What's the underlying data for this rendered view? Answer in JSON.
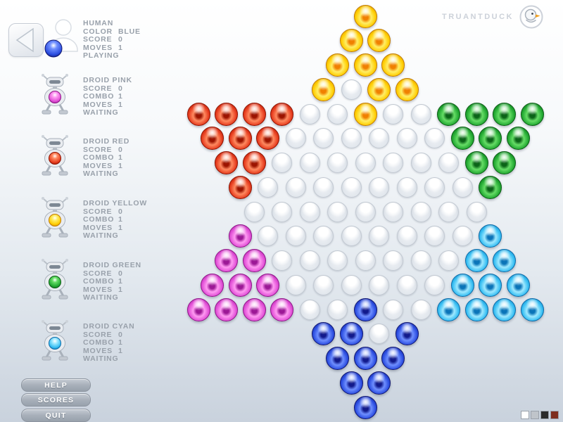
{
  "brand": {
    "name": "TRUANTDUCK"
  },
  "players": [
    {
      "name": "HUMAN",
      "icon": "human",
      "color_key": "blue",
      "stats": [
        [
          "COLOR",
          "BLUE"
        ],
        [
          "SCORE",
          "0"
        ],
        [
          "MOVES",
          "1"
        ]
      ],
      "status": "PLAYING"
    },
    {
      "name": "DROID PINK",
      "icon": "droid",
      "color_key": "pink",
      "stats": [
        [
          "SCORE",
          "0"
        ],
        [
          "COMBO",
          "1"
        ],
        [
          "MOVES",
          "1"
        ]
      ],
      "status": "WAITING"
    },
    {
      "name": "DROID RED",
      "icon": "droid",
      "color_key": "red",
      "stats": [
        [
          "SCORE",
          "0"
        ],
        [
          "COMBO",
          "1"
        ],
        [
          "MOVES",
          "1"
        ]
      ],
      "status": "WAITING"
    },
    {
      "name": "DROID YELLOW",
      "icon": "droid",
      "color_key": "yellow",
      "stats": [
        [
          "SCORE",
          "0"
        ],
        [
          "COMBO",
          "1"
        ],
        [
          "MOVES",
          "1"
        ]
      ],
      "status": "WAITING"
    },
    {
      "name": "DROID GREEN",
      "icon": "droid",
      "color_key": "green",
      "stats": [
        [
          "SCORE",
          "0"
        ],
        [
          "COMBO",
          "1"
        ],
        [
          "MOVES",
          "1"
        ]
      ],
      "status": "WAITING"
    },
    {
      "name": "DROID CYAN",
      "icon": "droid",
      "color_key": "cyan",
      "stats": [
        [
          "SCORE",
          "0"
        ],
        [
          "COMBO",
          "1"
        ],
        [
          "MOVES",
          "1"
        ]
      ],
      "status": "WAITING"
    }
  ],
  "menu_buttons": [
    {
      "label": "HELP"
    },
    {
      "label": "SCORES"
    },
    {
      "label": "QUIT"
    }
  ],
  "board": {
    "rows": [
      "Y",
      "YY",
      "YYY",
      "Y.YY",
      "RRRR..Y..GGGG",
      "RRR......GGG",
      "RR.......GG",
      "R........G",
      ".........",
      "P........C",
      "PP.......CC",
      "PPP......CCC",
      "PPPP..B..CCCC",
      "BB.B",
      "BBB",
      "BB",
      "B"
    ],
    "legend": {
      "Y": "yellow",
      "R": "red",
      "G": "green",
      "P": "pink",
      "C": "cyan",
      "B": "blue",
      ".": "empty"
    }
  },
  "palette": {
    "marbles": {
      "yellow": {
        "core": "#f08000",
        "main": "#ffcc00",
        "lite": "#ffee66",
        "edge": "#c27b00"
      },
      "red": {
        "core": "#9c1400",
        "main": "#e63c1e",
        "lite": "#ff8a60",
        "edge": "#8f1200"
      },
      "green": {
        "core": "#0b6418",
        "main": "#22a832",
        "lite": "#66dd66",
        "edge": "#0a5c14"
      },
      "pink": {
        "core": "#9c1896",
        "main": "#e14fd6",
        "lite": "#ff9bf2",
        "edge": "#8f1488"
      },
      "cyan": {
        "core": "#0a74b8",
        "main": "#35bdf2",
        "lite": "#9fe9ff",
        "edge": "#0a6aa8"
      },
      "blue": {
        "core": "#121a8c",
        "main": "#2b4de0",
        "lite": "#6f8fff",
        "edge": "#101670"
      }
    },
    "text_grey": "#99a1ab",
    "brand_grey": "#ccd1d9"
  },
  "theme_swatches": [
    "#ffffff",
    "#bfc4ca",
    "#2b2b2b",
    "#7e2e1f"
  ]
}
